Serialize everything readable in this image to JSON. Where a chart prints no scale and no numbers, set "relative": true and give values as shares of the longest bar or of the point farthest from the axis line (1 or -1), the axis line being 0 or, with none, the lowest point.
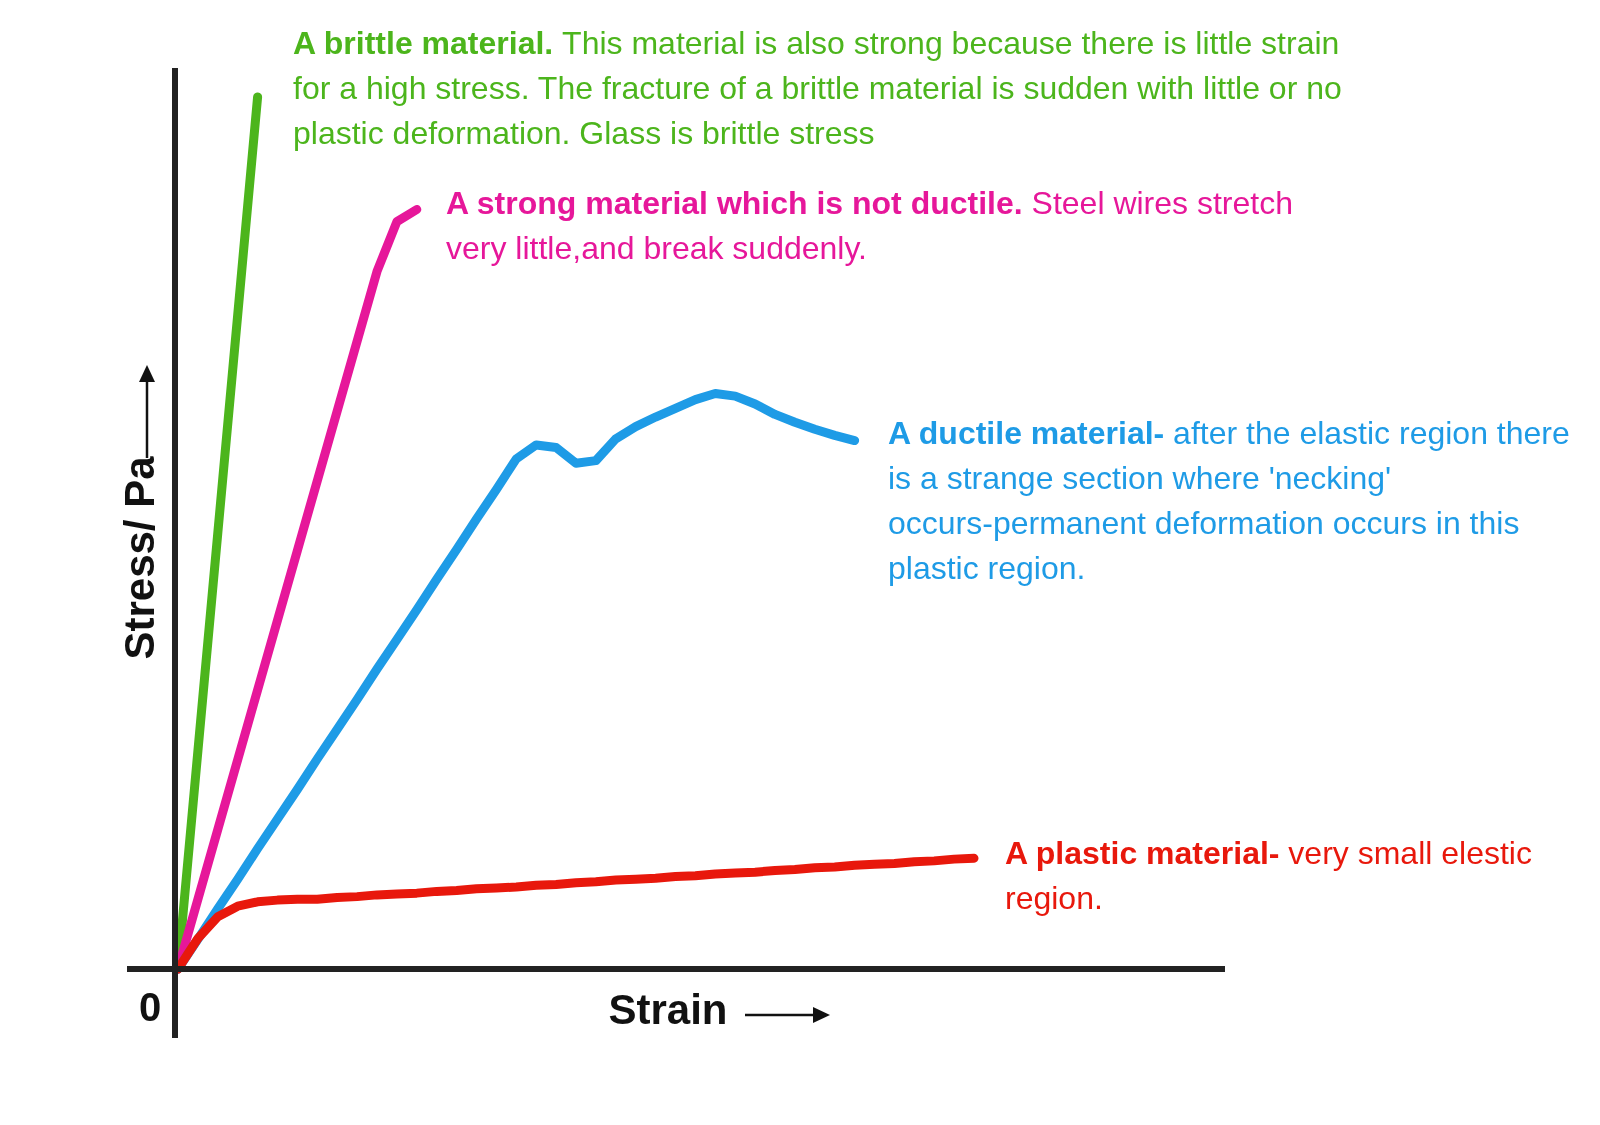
{
  "chart_data": {
    "type": "line",
    "relative": true,
    "xlabel": "Strain",
    "ylabel": "Stress/ Pa",
    "categories": [
      null,
      null,
      null,
      null,
      null,
      null,
      null,
      null,
      null,
      null,
      null,
      null,
      null,
      null,
      null,
      null,
      null,
      null,
      null,
      null,
      null,
      null,
      null,
      null,
      null,
      null,
      null,
      null,
      null,
      null,
      null,
      null,
      null,
      null,
      null,
      null,
      null,
      null,
      null,
      null,
      null
    ],
    "series": [
      {
        "name": "A brittle material.",
        "color": "#4cb51c",
        "values": [
          0,
          0.25,
          0.5,
          0.75,
          1,
          null,
          null,
          null,
          null,
          null,
          null,
          null,
          null,
          null,
          null,
          null,
          null,
          null,
          null,
          null,
          null,
          null,
          null,
          null,
          null,
          null,
          null,
          null,
          null,
          null,
          null,
          null,
          null,
          null,
          null,
          null,
          null,
          null,
          null,
          null,
          null
        ]
      },
      {
        "name": "A strong material which is not ductile.",
        "color": "#e6179a",
        "values": [
          0,
          0.08,
          0.16,
          0.24,
          0.32,
          0.4,
          0.48,
          0.56,
          0.64,
          0.72,
          0.8,
          0.857,
          0.871,
          null,
          null,
          null,
          null,
          null,
          null,
          null,
          null,
          null,
          null,
          null,
          null,
          null,
          null,
          null,
          null,
          null,
          null,
          null,
          null,
          null,
          null,
          null,
          null,
          null,
          null,
          null,
          null
        ]
      },
      {
        "name": "A ductile material-",
        "color": "#1e9be6",
        "values": [
          0,
          0.034,
          0.069,
          0.103,
          0.138,
          0.172,
          0.206,
          0.241,
          0.275,
          0.309,
          0.344,
          0.378,
          0.412,
          0.447,
          0.481,
          0.516,
          0.55,
          0.585,
          0.601,
          0.598,
          0.58,
          0.583,
          0.608,
          0.622,
          0.633,
          0.643,
          0.653,
          0.66,
          0.657,
          0.648,
          0.636,
          0.627,
          0.619,
          0.612,
          0.606,
          null,
          null,
          null,
          null,
          null,
          null
        ]
      },
      {
        "name": "A plastic material-",
        "color": "#e8180c",
        "values": [
          0,
          0.035,
          0.06,
          0.072,
          0.077,
          0.079,
          0.08,
          0.08,
          0.082,
          0.083,
          0.085,
          0.086,
          0.087,
          0.089,
          0.09,
          0.092,
          0.093,
          0.094,
          0.096,
          0.097,
          0.099,
          0.1,
          0.102,
          0.103,
          0.104,
          0.106,
          0.107,
          0.109,
          0.11,
          0.111,
          0.113,
          0.114,
          0.116,
          0.117,
          0.119,
          0.12,
          0.121,
          0.123,
          0.124,
          0.126,
          0.127
        ]
      }
    ],
    "annotations": [
      "This material is also strong because there is little strain for a high stress. The fracture of a brittle material is sudden with little or no plastic deformation. Glass is brittle stress",
      "Steel wires stretch very little,and break suddenly.",
      "after the elastic region there is a strange section where 'necking' occurs-permanent deformation occurs in this plastic region.",
      "very small elestic region.",
      "0"
    ]
  }
}
